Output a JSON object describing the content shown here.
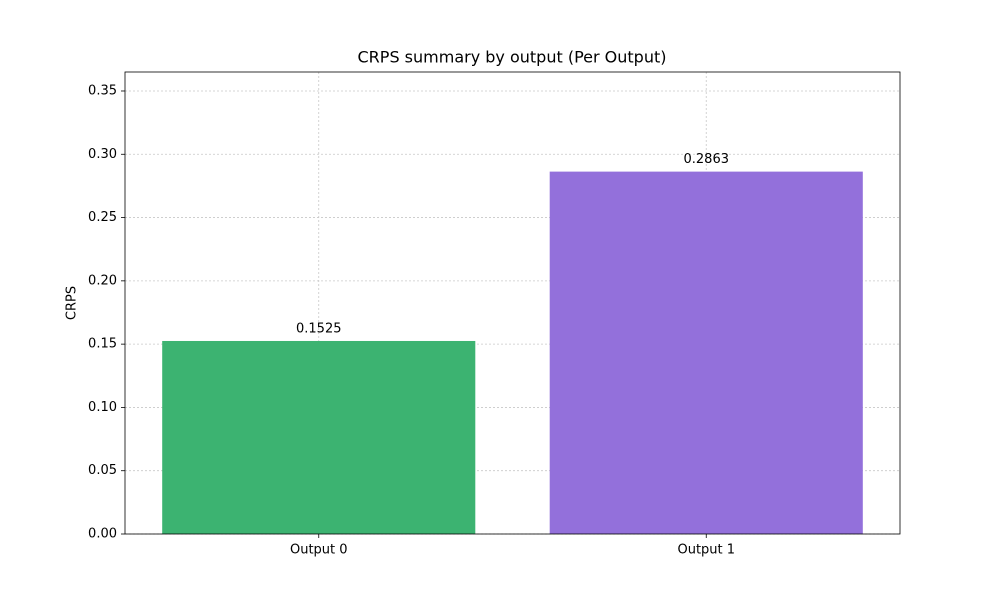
{
  "chart_data": {
    "type": "bar",
    "title": "CRPS summary by output (Per Output)",
    "y_label": "CRPS",
    "categories": [
      "Output 0",
      "Output 1"
    ],
    "values": [
      0.1525,
      0.2863
    ],
    "colors": [
      "#3cb371",
      "#9370db"
    ],
    "ylim": [
      0,
      0.365
    ],
    "yticks": [
      {
        "value": 0,
        "label": "0.00"
      },
      {
        "value": 0.05,
        "label": "0.05"
      },
      {
        "value": 0.1,
        "label": "0.10"
      },
      {
        "value": 0.15,
        "label": "0.15"
      },
      {
        "value": 0.2,
        "label": "0.20"
      },
      {
        "value": 0.25,
        "label": "0.25"
      },
      {
        "value": 0.3,
        "label": "0.30"
      },
      {
        "value": 0.35,
        "label": "0.35"
      }
    ],
    "grid": true
  }
}
